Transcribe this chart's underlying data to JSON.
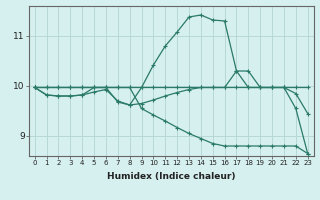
{
  "xlabel": "Humidex (Indice chaleur)",
  "bg_color": "#d6efef",
  "grid_color": "#b8d8d8",
  "line_color": "#2a7a6a",
  "xlim": [
    -0.5,
    23.5
  ],
  "ylim": [
    8.6,
    11.6
  ],
  "yticks": [
    9,
    10,
    11
  ],
  "xticks": [
    0,
    1,
    2,
    3,
    4,
    5,
    6,
    7,
    8,
    9,
    10,
    11,
    12,
    13,
    14,
    15,
    16,
    17,
    18,
    19,
    20,
    21,
    22,
    23
  ],
  "line1_x": [
    0,
    1,
    2,
    3,
    4,
    5,
    6,
    7,
    8,
    9,
    10,
    11,
    12,
    13,
    14,
    15,
    16,
    17,
    18,
    19,
    20,
    21,
    22,
    23
  ],
  "line1_y": [
    9.97,
    9.97,
    9.97,
    9.97,
    9.97,
    9.97,
    9.97,
    9.97,
    9.97,
    9.97,
    9.97,
    9.97,
    9.97,
    9.97,
    9.97,
    9.97,
    9.97,
    9.97,
    9.97,
    9.97,
    9.97,
    9.97,
    9.97,
    9.97
  ],
  "line2_x": [
    0,
    1,
    2,
    3,
    4,
    5,
    6,
    7,
    8,
    9,
    10,
    11,
    12,
    13,
    14,
    15,
    16,
    17,
    18,
    19,
    20,
    21,
    22,
    23
  ],
  "line2_y": [
    9.97,
    9.82,
    9.8,
    9.8,
    9.82,
    9.97,
    9.97,
    9.68,
    9.62,
    9.97,
    10.42,
    10.8,
    11.08,
    11.38,
    11.42,
    11.32,
    11.3,
    10.3,
    9.97,
    9.97,
    9.97,
    9.97,
    9.55,
    8.65
  ],
  "line3_x": [
    0,
    1,
    2,
    3,
    4,
    5,
    6,
    7,
    8,
    9,
    10,
    11,
    12,
    13,
    14,
    15,
    16,
    17,
    18,
    19,
    20,
    21,
    22,
    23
  ],
  "line3_y": [
    9.97,
    9.82,
    9.8,
    9.8,
    9.82,
    9.88,
    9.93,
    9.7,
    9.62,
    9.65,
    9.72,
    9.8,
    9.87,
    9.93,
    9.97,
    9.97,
    9.97,
    10.3,
    10.3,
    9.97,
    9.97,
    9.97,
    9.85,
    9.45
  ],
  "line4_x": [
    0,
    1,
    2,
    3,
    4,
    5,
    6,
    7,
    8,
    9,
    10,
    11,
    12,
    13,
    14,
    15,
    16,
    17,
    18,
    19,
    20,
    21,
    22,
    23
  ],
  "line4_y": [
    9.97,
    9.97,
    9.97,
    9.97,
    9.97,
    9.97,
    9.97,
    9.97,
    9.97,
    9.55,
    9.42,
    9.3,
    9.17,
    9.05,
    8.95,
    8.85,
    8.8,
    8.8,
    8.8,
    8.8,
    8.8,
    8.8,
    8.8,
    8.65
  ]
}
